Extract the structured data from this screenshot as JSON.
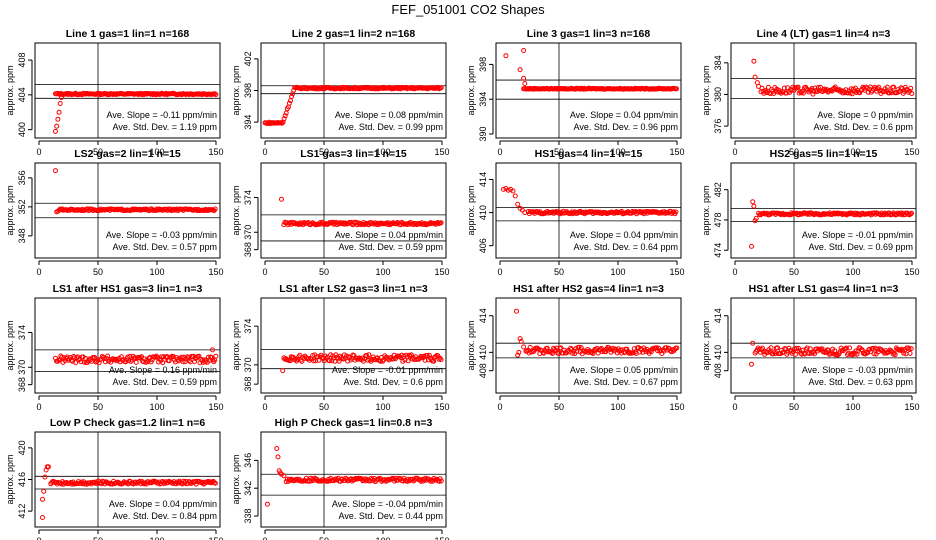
{
  "figure": {
    "title": "FEF_051001  CO2 Shapes"
  },
  "chart_data": [
    {
      "type": "scatter",
      "title": "Line 1 gas=1 lin=1 n=168",
      "ylabel": "approx. ppm",
      "xlim": [
        0,
        150
      ],
      "ylim": [
        399.5,
        409.5
      ],
      "xticks": [
        0,
        50,
        100,
        150
      ],
      "yticks": [
        400,
        404,
        408
      ],
      "vline": 50,
      "hlines": [
        405.2,
        403.6
      ],
      "slope_text": "Ave. Slope = -0.11  ppm/min",
      "sd_text": "Ave. Std. Dev. = 1.19  ppm",
      "shape": {
        "start": 14,
        "end": 150,
        "level": 404.1,
        "noise": 0.08,
        "rise": [
          [
            14,
            399.8
          ],
          [
            15,
            400.4
          ],
          [
            16,
            401.2
          ],
          [
            17,
            402.0
          ],
          [
            18,
            403.0
          ],
          [
            19,
            403.7
          ]
        ]
      }
    },
    {
      "type": "scatter",
      "title": "Line 2 gas=1 lin=2 n=168",
      "ylabel": "approx. ppm",
      "xlim": [
        0,
        150
      ],
      "ylim": [
        392.5,
        403.5
      ],
      "xticks": [
        0,
        50,
        100,
        150
      ],
      "yticks": [
        394,
        398,
        402
      ],
      "vline": 50,
      "hlines": [
        398.6,
        397.6
      ],
      "slope_text": "Ave. Slope = 0.08  ppm/min",
      "sd_text": "Ave. Std. Dev. = 0.99  ppm",
      "shape": {
        "start": 0,
        "end": 150,
        "level": 398.3,
        "noise": 0.1,
        "low": 393.9,
        "step_x": 15,
        "step_w": 10
      }
    },
    {
      "type": "scatter",
      "title": "Line 3 gas=1 lin=3 n=168",
      "ylabel": "approx. ppm",
      "xlim": [
        0,
        150
      ],
      "ylim": [
        390,
        400
      ],
      "xticks": [
        0,
        50,
        100,
        150
      ],
      "yticks": [
        390,
        394,
        398
      ],
      "vline": 50,
      "hlines": [
        396.2,
        394.0
      ],
      "slope_text": "Ave. Slope = 0.04  ppm/min",
      "sd_text": "Ave. Std. Dev. = 0.96  ppm",
      "shape": {
        "start": 20,
        "end": 150,
        "level": 395.2,
        "noise": 0.05,
        "rise": [
          [
            5,
            399.0
          ],
          [
            20,
            399.6
          ],
          [
            17,
            397.4
          ],
          [
            20,
            396.4
          ],
          [
            21,
            395.8
          ]
        ]
      }
    },
    {
      "type": "scatter",
      "title": "Line 4 (LT) gas=1 lin=4 n=3",
      "ylabel": "approx. ppm",
      "xlim": [
        0,
        150
      ],
      "ylim": [
        375,
        386
      ],
      "xticks": [
        0,
        50,
        100,
        150
      ],
      "yticks": [
        376,
        380,
        384
      ],
      "vline": 50,
      "hlines": [
        382.0,
        379.5
      ],
      "slope_text": "Ave. Slope = 0  ppm/min",
      "sd_text": "Ave. Std. Dev. = 0.6  ppm",
      "shape": {
        "start": 22,
        "end": 150,
        "level": 380.5,
        "noise": 0.45,
        "rise": [
          [
            16,
            384.2
          ],
          [
            17,
            382.2
          ],
          [
            19,
            381.5
          ],
          [
            20,
            381.0
          ]
        ]
      }
    },
    {
      "type": "scatter",
      "title": "LS2 gas=2 lin=1 n=15",
      "ylabel": "approx. ppm",
      "xlim": [
        0,
        150
      ],
      "ylim": [
        345.5,
        357.5
      ],
      "xticks": [
        0,
        50,
        100,
        150
      ],
      "yticks": [
        348,
        352,
        356
      ],
      "vline": 50,
      "hlines": [
        352.5,
        350.5
      ],
      "slope_text": "Ave. Slope = -0.03  ppm/min",
      "sd_text": "Ave. Std. Dev. = 0.57  ppm",
      "shape": {
        "start": 17,
        "end": 150,
        "level": 351.6,
        "noise": 0.12,
        "rise": [
          [
            14,
            357.0
          ],
          [
            15,
            351.3
          ],
          [
            16,
            351.4
          ]
        ]
      }
    },
    {
      "type": "scatter",
      "title": "LS1 gas=3 lin=1 n=15",
      "ylabel": "approx. ppm",
      "xlim": [
        0,
        150
      ],
      "ylim": [
        367.5,
        377.5
      ],
      "xticks": [
        0,
        50,
        100,
        150
      ],
      "yticks": [
        368,
        370,
        374
      ],
      "vline": 50,
      "hlines": [
        372.0,
        369.0
      ],
      "slope_text": "Ave. Slope = 0.04  ppm/min",
      "sd_text": "Ave. Std. Dev. = 0.59  ppm",
      "shape": {
        "start": 16,
        "end": 150,
        "level": 371.0,
        "noise": 0.15,
        "rise": [
          [
            14,
            373.8
          ]
        ]
      }
    },
    {
      "type": "scatter",
      "title": "HS1 gas=4 lin=1 n=15",
      "ylabel": "approx. ppm",
      "xlim": [
        0,
        150
      ],
      "ylim": [
        405,
        415.5
      ],
      "xticks": [
        0,
        50,
        100,
        150
      ],
      "yticks": [
        406,
        410,
        414
      ],
      "vline": 50,
      "hlines": [
        410.6,
        409.0
      ],
      "slope_text": "Ave. Slope = 0.04  ppm/min",
      "sd_text": "Ave. Std. Dev. = 0.64  ppm",
      "shape": {
        "start": 24,
        "end": 150,
        "level": 410.0,
        "noise": 0.15,
        "rise": [
          [
            3,
            412.8
          ],
          [
            5,
            412.9
          ],
          [
            7,
            412.7
          ],
          [
            9,
            412.8
          ],
          [
            11,
            412.6
          ],
          [
            13,
            412.0
          ],
          [
            15,
            411.0
          ],
          [
            17,
            410.5
          ],
          [
            19,
            410.3
          ],
          [
            21,
            410.0
          ]
        ]
      }
    },
    {
      "type": "scatter",
      "title": "HS2 gas=5 lin=1 n=15",
      "ylabel": "approx. ppm",
      "xlim": [
        0,
        150
      ],
      "ylim": [
        473.5,
        485
      ],
      "xticks": [
        0,
        50,
        100,
        150
      ],
      "yticks": [
        474,
        478,
        482
      ],
      "vline": 50,
      "hlines": [
        479.5,
        477.8
      ],
      "slope_text": "Ave. Slope = -0.01  ppm/min",
      "sd_text": "Ave. Std. Dev. = 0.69  ppm",
      "shape": {
        "start": 20,
        "end": 150,
        "level": 478.8,
        "noise": 0.15,
        "rise": [
          [
            14,
            474.5
          ],
          [
            15,
            480.4
          ],
          [
            16,
            479.8
          ],
          [
            17,
            477.9
          ],
          [
            18,
            478.2
          ]
        ]
      }
    },
    {
      "type": "scatter",
      "title": "LS1 after HS1 gas=3 lin=1 n=3",
      "ylabel": "approx. ppm",
      "xlim": [
        0,
        150
      ],
      "ylim": [
        367.5,
        377.5
      ],
      "xticks": [
        0,
        50,
        100,
        150
      ],
      "yticks": [
        368,
        370,
        374
      ],
      "vline": 50,
      "hlines": [
        372.0,
        369.5
      ],
      "slope_text": "Ave. Slope = 0.16  ppm/min",
      "sd_text": "Ave. Std. Dev. = 0.59  ppm",
      "shape": {
        "start": 14,
        "end": 150,
        "level": 370.9,
        "noise": 0.4,
        "rise": [
          [
            147,
            372.0
          ]
        ]
      }
    },
    {
      "type": "scatter",
      "title": "LS1 after LS2 gas=3 lin=1 n=3",
      "ylabel": "approx. ppm",
      "xlim": [
        0,
        150
      ],
      "ylim": [
        367.5,
        376.5
      ],
      "xticks": [
        0,
        50,
        100,
        150
      ],
      "yticks": [
        368,
        370,
        374
      ],
      "vline": 50,
      "hlines": [
        371.6,
        369.6
      ],
      "slope_text": "Ave. Slope = -0.01  ppm/min",
      "sd_text": "Ave. Std. Dev. = 0.6  ppm",
      "shape": {
        "start": 16,
        "end": 150,
        "level": 370.7,
        "noise": 0.35,
        "rise": [
          [
            15,
            369.4
          ]
        ]
      }
    },
    {
      "type": "scatter",
      "title": "HS1 after HS2 gas=4 lin=1 n=3",
      "ylabel": "approx. ppm",
      "xlim": [
        0,
        150
      ],
      "ylim": [
        406,
        415.5
      ],
      "xticks": [
        0,
        50,
        100,
        150
      ],
      "yticks": [
        408,
        410,
        414
      ],
      "vline": 50,
      "hlines": [
        411.0,
        409.4
      ],
      "slope_text": "Ave. Slope = 0.05  ppm/min",
      "sd_text": "Ave. Std. Dev. = 0.67  ppm",
      "shape": {
        "start": 22,
        "end": 150,
        "level": 410.2,
        "noise": 0.35,
        "rise": [
          [
            14,
            414.5
          ],
          [
            15,
            409.7
          ],
          [
            16,
            410.0
          ],
          [
            17,
            411.5
          ],
          [
            18,
            411.2
          ],
          [
            20,
            410.6
          ]
        ]
      }
    },
    {
      "type": "scatter",
      "title": "HS1 after LS1 gas=4 lin=1 n=3",
      "ylabel": "approx. ppm",
      "xlim": [
        0,
        150
      ],
      "ylim": [
        406,
        415.5
      ],
      "xticks": [
        0,
        50,
        100,
        150
      ],
      "yticks": [
        408,
        410,
        414
      ],
      "vline": 50,
      "hlines": [
        411.0,
        409.4
      ],
      "slope_text": "Ave. Slope = -0.03  ppm/min",
      "sd_text": "Ave. Std. Dev. = 0.63  ppm",
      "shape": {
        "start": 17,
        "end": 150,
        "level": 410.1,
        "noise": 0.4,
        "rise": [
          [
            14,
            408.7
          ],
          [
            15,
            411.0
          ]
        ]
      }
    },
    {
      "type": "scatter",
      "title": "Low P Check gas=1.2 lin=1 n=6",
      "ylabel": "approx. ppm",
      "xlim": [
        0,
        150
      ],
      "ylim": [
        410.5,
        421.5
      ],
      "xticks": [
        0,
        50,
        100,
        150
      ],
      "yticks": [
        412,
        416,
        420
      ],
      "vline": 50,
      "hlines": [
        416.4,
        414.8
      ],
      "slope_text": "Ave. Slope = 0.04  ppm/min",
      "sd_text": "Ave. Std. Dev. = 0.84  ppm",
      "shape": {
        "start": 10,
        "end": 150,
        "level": 415.6,
        "noise": 0.2,
        "rise": [
          [
            3,
            411.2
          ],
          [
            3,
            413.5
          ],
          [
            4,
            414.5
          ],
          [
            5,
            416.3
          ],
          [
            6,
            417.2
          ],
          [
            7,
            417.6
          ],
          [
            8,
            417.6
          ]
        ]
      }
    },
    {
      "type": "scatter",
      "title": "High P Check gas=1 lin=0.8 n=3",
      "ylabel": "approx. ppm",
      "xlim": [
        0,
        150
      ],
      "ylim": [
        337,
        349.5
      ],
      "xticks": [
        0,
        50,
        100,
        150
      ],
      "yticks": [
        338,
        342,
        346
      ],
      "vline": 50,
      "hlines": [
        344.0,
        341.0
      ],
      "slope_text": "Ave. Slope = -0.04  ppm/min",
      "sd_text": "Ave. Std. Dev. = 0.44  ppm",
      "shape": {
        "start": 18,
        "end": 150,
        "level": 343.2,
        "noise": 0.25,
        "rise": [
          [
            2,
            339.7
          ],
          [
            10,
            347.7
          ],
          [
            11,
            346.5
          ],
          [
            12,
            344.5
          ],
          [
            13,
            344.2
          ],
          [
            14,
            344.0
          ],
          [
            16,
            343.8
          ]
        ]
      }
    }
  ]
}
